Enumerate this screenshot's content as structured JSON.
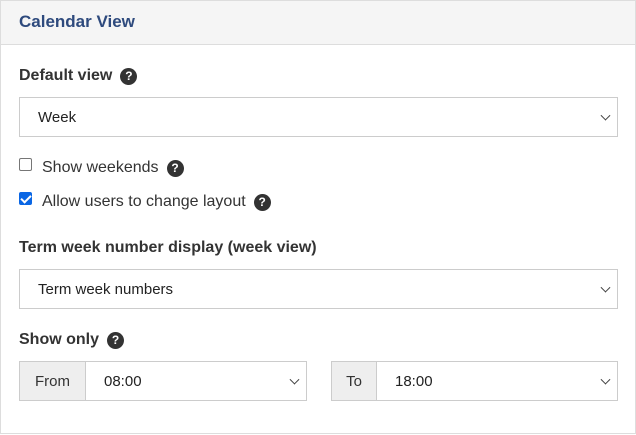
{
  "header": {
    "title": "Calendar View"
  },
  "default_view": {
    "label": "Default view",
    "value": "Week"
  },
  "show_weekends": {
    "label": "Show weekends",
    "checked": false
  },
  "allow_layout": {
    "label": "Allow users to change layout",
    "checked": true
  },
  "term_week": {
    "label": "Term week number display (week view)",
    "value": "Term week numbers"
  },
  "show_only": {
    "label": "Show only",
    "from_label": "From",
    "from_value": "08:00",
    "to_label": "To",
    "to_value": "18:00"
  },
  "icons": {
    "help": "question-circle-icon",
    "dropdown": "chevron-down-icon"
  },
  "help_glyph": "?"
}
